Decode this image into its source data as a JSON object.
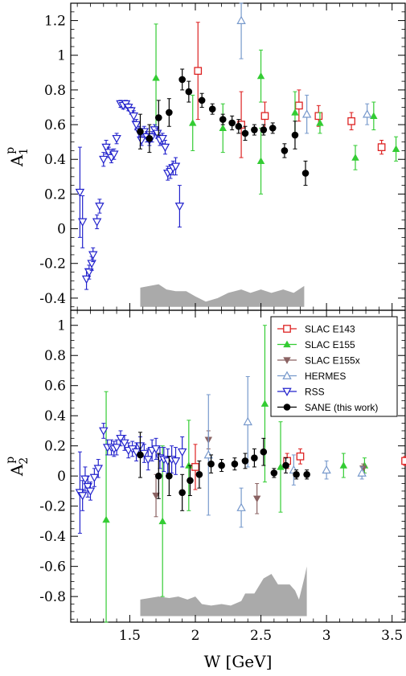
{
  "chart_data": [
    {
      "type": "scatter",
      "panel": "top",
      "ylabel": "A1p",
      "ylabel_main": "A",
      "ylabel_sub": "1",
      "ylabel_sup": "p",
      "xlim": [
        1.05,
        3.6
      ],
      "ylim": [
        -0.47,
        1.3
      ],
      "yticks": [
        -0.4,
        -0.2,
        0,
        0.2,
        0.4,
        0.6,
        0.8,
        1,
        1.2
      ],
      "ytick_labels": [
        "-0.4",
        "-0.2",
        "0",
        "0.2",
        "0.4",
        "0.6",
        "0.8",
        "1",
        "1.2"
      ],
      "systematic_band": {
        "color": "#aaaaaa",
        "points": [
          [
            1.58,
            -0.45
          ],
          [
            1.58,
            -0.34
          ],
          [
            1.65,
            -0.33
          ],
          [
            1.72,
            -0.32
          ],
          [
            1.78,
            -0.35
          ],
          [
            1.85,
            -0.36
          ],
          [
            1.93,
            -0.36
          ],
          [
            2.0,
            -0.39
          ],
          [
            2.08,
            -0.42
          ],
          [
            2.17,
            -0.4
          ],
          [
            2.25,
            -0.37
          ],
          [
            2.35,
            -0.35
          ],
          [
            2.42,
            -0.37
          ],
          [
            2.5,
            -0.35
          ],
          [
            2.58,
            -0.37
          ],
          [
            2.67,
            -0.35
          ],
          [
            2.75,
            -0.37
          ],
          [
            2.83,
            -0.33
          ],
          [
            2.83,
            -0.45
          ]
        ]
      },
      "series": [
        {
          "name": "SLAC E143",
          "marker": "open-square",
          "color": "#dd2222",
          "points": [
            [
              2.02,
              0.91,
              0.28
            ],
            [
              2.35,
              0.6,
              0.19
            ],
            [
              2.53,
              0.65,
              0.08
            ],
            [
              2.79,
              0.71,
              0.09
            ],
            [
              2.94,
              0.65,
              0.06
            ],
            [
              3.19,
              0.62,
              0.05
            ],
            [
              3.42,
              0.47,
              0.04
            ]
          ]
        },
        {
          "name": "SLAC E155",
          "marker": "filled-triangle-up",
          "color": "#33cc33",
          "points": [
            [
              1.7,
              0.87,
              0.31
            ],
            [
              1.98,
              0.61,
              0.16
            ],
            [
              2.21,
              0.58,
              0.14
            ],
            [
              2.5,
              0.88,
              0.15
            ],
            [
              2.5,
              0.39,
              0.19
            ],
            [
              2.76,
              0.67,
              0.12
            ],
            [
              2.95,
              0.61,
              0.06
            ],
            [
              3.22,
              0.41,
              0.07
            ],
            [
              3.36,
              0.65,
              0.08
            ],
            [
              3.53,
              0.46,
              0.07
            ]
          ]
        },
        {
          "name": "SLAC E155x",
          "marker": "filled-triangle-down",
          "color": "#8a6262",
          "points": []
        },
        {
          "name": "HERMES",
          "marker": "open-triangle-up",
          "color": "#7799cc",
          "points": [
            [
              2.35,
              1.2,
              0.22
            ],
            [
              2.85,
              0.66,
              0.11
            ],
            [
              3.31,
              0.66,
              0.06
            ]
          ]
        },
        {
          "name": "RSS",
          "marker": "open-triangle-down",
          "color": "#2222cc",
          "points": [
            [
              1.12,
              0.21,
              0.26
            ],
            [
              1.14,
              0.04,
              0.15
            ],
            [
              1.17,
              -0.29,
              0.06
            ],
            [
              1.19,
              -0.25,
              0.04
            ],
            [
              1.21,
              -0.2,
              0.04
            ],
            [
              1.22,
              -0.15,
              0.04
            ],
            [
              1.25,
              0.04,
              0.04
            ],
            [
              1.27,
              0.13,
              0.04
            ],
            [
              1.3,
              0.4,
              0.04
            ],
            [
              1.32,
              0.47,
              0.04
            ],
            [
              1.34,
              0.44,
              0.03
            ],
            [
              1.36,
              0.41,
              0.03
            ],
            [
              1.38,
              0.43,
              0.03
            ],
            [
              1.4,
              0.52,
              0.03
            ],
            [
              1.43,
              0.72,
              0.02
            ],
            [
              1.45,
              0.71,
              0.02
            ],
            [
              1.47,
              0.72,
              0.02
            ],
            [
              1.49,
              0.7,
              0.02
            ],
            [
              1.51,
              0.68,
              0.02
            ],
            [
              1.53,
              0.65,
              0.03
            ],
            [
              1.55,
              0.6,
              0.03
            ],
            [
              1.57,
              0.56,
              0.03
            ],
            [
              1.59,
              0.51,
              0.03
            ],
            [
              1.61,
              0.56,
              0.03
            ],
            [
              1.63,
              0.53,
              0.03
            ],
            [
              1.65,
              0.51,
              0.03
            ],
            [
              1.67,
              0.53,
              0.03
            ],
            [
              1.69,
              0.57,
              0.03
            ],
            [
              1.71,
              0.55,
              0.03
            ],
            [
              1.73,
              0.51,
              0.03
            ],
            [
              1.75,
              0.52,
              0.03
            ],
            [
              1.77,
              0.47,
              0.04
            ],
            [
              1.79,
              0.32,
              0.04
            ],
            [
              1.81,
              0.33,
              0.04
            ],
            [
              1.83,
              0.35,
              0.04
            ],
            [
              1.85,
              0.36,
              0.05
            ],
            [
              1.88,
              0.13,
              0.12
            ]
          ]
        },
        {
          "name": "SANE (this work)",
          "marker": "filled-circle",
          "color": "#000000",
          "points": [
            [
              1.58,
              0.56,
              0.1
            ],
            [
              1.65,
              0.52,
              0.08
            ],
            [
              1.72,
              0.64,
              0.1
            ],
            [
              1.8,
              0.67,
              0.08
            ],
            [
              1.9,
              0.86,
              0.06
            ],
            [
              1.95,
              0.79,
              0.06
            ],
            [
              2.05,
              0.74,
              0.04
            ],
            [
              2.13,
              0.69,
              0.03
            ],
            [
              2.21,
              0.63,
              0.03
            ],
            [
              2.28,
              0.61,
              0.04
            ],
            [
              2.33,
              0.59,
              0.04
            ],
            [
              2.38,
              0.55,
              0.04
            ],
            [
              2.45,
              0.57,
              0.03
            ],
            [
              2.52,
              0.57,
              0.03
            ],
            [
              2.59,
              0.58,
              0.03
            ],
            [
              2.68,
              0.45,
              0.04
            ],
            [
              2.76,
              0.54,
              0.08
            ],
            [
              2.84,
              0.32,
              0.07
            ]
          ]
        }
      ]
    },
    {
      "type": "scatter",
      "panel": "bottom",
      "xlabel": "W [GeV]",
      "ylabel": "A2p",
      "ylabel_main": "A",
      "ylabel_sub": "2",
      "ylabel_sup": "p",
      "xlim": [
        1.05,
        3.6
      ],
      "ylim": [
        -0.97,
        1.1
      ],
      "xticks": [
        1.5,
        2,
        2.5,
        3,
        3.5
      ],
      "xtick_labels": [
        "1.5",
        "2",
        "2.5",
        "3",
        "3.5"
      ],
      "yticks": [
        -0.8,
        -0.6,
        -0.4,
        -0.2,
        0,
        0.2,
        0.4,
        0.6,
        0.8,
        1
      ],
      "ytick_labels": [
        "-0.8",
        "-0.6",
        "-0.4",
        "-0.2",
        "0",
        "0.2",
        "0.4",
        "0.6",
        "0.8",
        "1"
      ],
      "legend_position": "top-right",
      "systematic_band": {
        "color": "#aaaaaa",
        "points": [
          [
            1.58,
            -0.93
          ],
          [
            1.58,
            -0.82
          ],
          [
            1.65,
            -0.81
          ],
          [
            1.72,
            -0.8
          ],
          [
            1.8,
            -0.81
          ],
          [
            1.87,
            -0.8
          ],
          [
            1.94,
            -0.82
          ],
          [
            2.0,
            -0.8
          ],
          [
            2.05,
            -0.85
          ],
          [
            2.12,
            -0.86
          ],
          [
            2.2,
            -0.85
          ],
          [
            2.27,
            -0.86
          ],
          [
            2.35,
            -0.83
          ],
          [
            2.38,
            -0.78
          ],
          [
            2.45,
            -0.78
          ],
          [
            2.52,
            -0.68
          ],
          [
            2.58,
            -0.65
          ],
          [
            2.63,
            -0.72
          ],
          [
            2.68,
            -0.72
          ],
          [
            2.72,
            -0.72
          ],
          [
            2.76,
            -0.76
          ],
          [
            2.79,
            -0.82
          ],
          [
            2.83,
            -0.68
          ],
          [
            2.85,
            -0.6
          ],
          [
            2.85,
            -0.93
          ]
        ]
      },
      "series": [
        {
          "name": "SLAC E143",
          "marker": "open-square",
          "color": "#dd2222",
          "points": [
            [
              2.0,
              0.06,
              0.15
            ],
            [
              2.7,
              0.1,
              0.05
            ],
            [
              2.8,
              0.13,
              0.05
            ],
            [
              3.6,
              0.1,
              0.03
            ]
          ]
        },
        {
          "name": "SLAC E155",
          "marker": "filled-triangle-up",
          "color": "#33cc33",
          "points": [
            [
              1.32,
              -0.29,
              0.85
            ],
            [
              1.75,
              -0.3,
              0.5
            ],
            [
              1.95,
              0.07,
              0.3
            ],
            [
              2.53,
              0.48,
              0.52
            ],
            [
              2.65,
              0.06,
              0.3
            ],
            [
              3.13,
              0.07,
              0.08
            ],
            [
              3.29,
              0.07,
              0.05
            ]
          ]
        },
        {
          "name": "SLAC E155x",
          "marker": "filled-triangle-down",
          "color": "#8a6262",
          "points": [
            [
              1.7,
              -0.13,
              0.14
            ],
            [
              2.1,
              0.24,
              0.06
            ],
            [
              2.47,
              -0.15,
              0.1
            ],
            [
              3.28,
              0.05,
              0.03
            ]
          ]
        },
        {
          "name": "HERMES",
          "marker": "open-triangle-up",
          "color": "#7799cc",
          "points": [
            [
              2.1,
              0.14,
              0.4
            ],
            [
              2.35,
              -0.21,
              0.13
            ],
            [
              2.4,
              0.36,
              0.3
            ],
            [
              2.75,
              0.04,
              0.1
            ],
            [
              3.0,
              0.04,
              0.06
            ],
            [
              3.27,
              0.02,
              0.04
            ]
          ]
        },
        {
          "name": "RSS",
          "marker": "open-triangle-down",
          "color": "#2222cc",
          "points": [
            [
              1.12,
              -0.11,
              0.27
            ],
            [
              1.14,
              -0.13,
              0.1
            ],
            [
              1.16,
              -0.02,
              0.08
            ],
            [
              1.18,
              -0.07,
              0.07
            ],
            [
              1.2,
              -0.1,
              0.06
            ],
            [
              1.23,
              -0.01,
              0.06
            ],
            [
              1.26,
              0.05,
              0.06
            ],
            [
              1.3,
              0.3,
              0.05
            ],
            [
              1.33,
              0.19,
              0.05
            ],
            [
              1.36,
              0.19,
              0.05
            ],
            [
              1.38,
              0.18,
              0.05
            ],
            [
              1.4,
              0.19,
              0.05
            ],
            [
              1.43,
              0.25,
              0.05
            ],
            [
              1.46,
              0.22,
              0.05
            ],
            [
              1.49,
              0.17,
              0.05
            ],
            [
              1.52,
              0.18,
              0.05
            ],
            [
              1.55,
              0.16,
              0.06
            ],
            [
              1.58,
              0.2,
              0.06
            ],
            [
              1.61,
              0.15,
              0.06
            ],
            [
              1.64,
              0.11,
              0.07
            ],
            [
              1.67,
              0.17,
              0.07
            ],
            [
              1.7,
              0.18,
              0.07
            ],
            [
              1.73,
              0.12,
              0.07
            ],
            [
              1.76,
              0.11,
              0.08
            ],
            [
              1.79,
              0.1,
              0.08
            ],
            [
              1.82,
              0.11,
              0.09
            ],
            [
              1.85,
              0.1,
              0.09
            ],
            [
              1.9,
              0.16,
              0.1
            ]
          ]
        },
        {
          "name": "SANE (this work)",
          "marker": "filled-circle",
          "color": "#000000",
          "points": [
            [
              1.58,
              0.14,
              0.15
            ],
            [
              1.72,
              0.0,
              0.15
            ],
            [
              1.8,
              0.0,
              0.13
            ],
            [
              1.9,
              -0.11,
              0.12
            ],
            [
              1.96,
              -0.03,
              0.1
            ],
            [
              2.03,
              0.01,
              0.09
            ],
            [
              2.12,
              0.08,
              0.06
            ],
            [
              2.2,
              0.07,
              0.04
            ],
            [
              2.3,
              0.08,
              0.04
            ],
            [
              2.38,
              0.1,
              0.05
            ],
            [
              2.45,
              0.12,
              0.06
            ],
            [
              2.52,
              0.16,
              0.09
            ],
            [
              2.6,
              0.02,
              0.03
            ],
            [
              2.69,
              0.07,
              0.05
            ],
            [
              2.77,
              0.01,
              0.03
            ],
            [
              2.85,
              0.01,
              0.03
            ]
          ]
        }
      ]
    }
  ]
}
